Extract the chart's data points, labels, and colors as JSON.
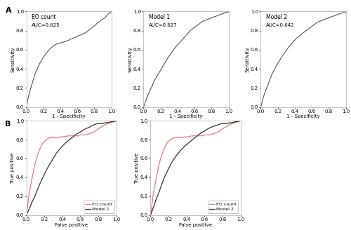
{
  "panel_A_label": "A",
  "panel_B_label": "B",
  "subplot_titles": [
    "EO count",
    "Model 1",
    "Model 2"
  ],
  "auc_values": [
    "AUC=0.625",
    "AUC=0.627",
    "AUC=0.642"
  ],
  "xlabel_A": "1 - Specificity",
  "ylabel_A": "Sensitivity",
  "xlabel_B": "False positive",
  "ylabel_B": "True positive",
  "xticks": [
    0.0,
    0.2,
    0.4,
    0.6,
    0.8,
    1.0
  ],
  "yticks": [
    0.0,
    0.2,
    0.4,
    0.6,
    0.8,
    1.0
  ],
  "line_color_dark": "#555555",
  "line_color_pink": "#E87878",
  "line_color_dark2": "#333333",
  "background_color": "#ffffff",
  "spine_color": "#aaaaaa",
  "font_size": 5.5,
  "label_font_size": 5.0,
  "panel_label_font_size": 8,
  "roc_eo_x": [
    0.0,
    0.01,
    0.02,
    0.04,
    0.06,
    0.08,
    0.1,
    0.13,
    0.16,
    0.2,
    0.24,
    0.28,
    0.32,
    0.36,
    0.4,
    0.44,
    0.47,
    0.5,
    0.52,
    0.55,
    0.58,
    0.6,
    0.63,
    0.65,
    0.68,
    0.7,
    0.73,
    0.76,
    0.8,
    0.84,
    0.88,
    0.92,
    0.95,
    0.97,
    0.99,
    1.0
  ],
  "roc_eo_y": [
    0.0,
    0.04,
    0.09,
    0.16,
    0.22,
    0.28,
    0.34,
    0.4,
    0.46,
    0.52,
    0.57,
    0.61,
    0.64,
    0.66,
    0.67,
    0.68,
    0.69,
    0.7,
    0.71,
    0.72,
    0.73,
    0.74,
    0.75,
    0.76,
    0.77,
    0.78,
    0.8,
    0.82,
    0.85,
    0.88,
    0.91,
    0.93,
    0.96,
    0.98,
    0.99,
    1.0
  ],
  "roc_m1_x": [
    0.0,
    0.01,
    0.02,
    0.04,
    0.07,
    0.1,
    0.13,
    0.17,
    0.21,
    0.25,
    0.29,
    0.33,
    0.37,
    0.41,
    0.45,
    0.49,
    0.52,
    0.55,
    0.58,
    0.61,
    0.64,
    0.67,
    0.7,
    0.73,
    0.76,
    0.79,
    0.82,
    0.85,
    0.88,
    0.91,
    0.94,
    0.97,
    0.99,
    1.0
  ],
  "roc_m1_y": [
    0.0,
    0.02,
    0.05,
    0.1,
    0.16,
    0.22,
    0.28,
    0.34,
    0.4,
    0.46,
    0.52,
    0.57,
    0.62,
    0.66,
    0.7,
    0.74,
    0.77,
    0.8,
    0.82,
    0.84,
    0.86,
    0.88,
    0.9,
    0.91,
    0.92,
    0.93,
    0.94,
    0.95,
    0.96,
    0.97,
    0.98,
    0.99,
    0.99,
    1.0
  ],
  "roc_m2_x": [
    0.0,
    0.01,
    0.02,
    0.04,
    0.07,
    0.1,
    0.13,
    0.17,
    0.21,
    0.25,
    0.29,
    0.33,
    0.37,
    0.41,
    0.45,
    0.49,
    0.52,
    0.55,
    0.58,
    0.61,
    0.64,
    0.67,
    0.7,
    0.73,
    0.76,
    0.79,
    0.82,
    0.85,
    0.88,
    0.91,
    0.94,
    0.97,
    0.99,
    1.0
  ],
  "roc_m2_y": [
    0.0,
    0.03,
    0.07,
    0.13,
    0.2,
    0.27,
    0.34,
    0.41,
    0.47,
    0.53,
    0.58,
    0.63,
    0.67,
    0.71,
    0.74,
    0.77,
    0.79,
    0.81,
    0.83,
    0.85,
    0.87,
    0.89,
    0.9,
    0.91,
    0.92,
    0.93,
    0.94,
    0.95,
    0.96,
    0.97,
    0.98,
    0.99,
    0.99,
    1.0
  ],
  "roc_eo_b_x": [
    0.0,
    0.01,
    0.02,
    0.03,
    0.05,
    0.07,
    0.09,
    0.12,
    0.15,
    0.18,
    0.22,
    0.26,
    0.3,
    0.34,
    0.38,
    0.42,
    0.46,
    0.5,
    0.54,
    0.57,
    0.6,
    0.63,
    0.65,
    0.67,
    0.69,
    0.72,
    0.75,
    0.78,
    0.81,
    0.85,
    0.88,
    0.91,
    0.94,
    0.97,
    1.0
  ],
  "roc_eo_b_y": [
    0.0,
    0.06,
    0.14,
    0.22,
    0.32,
    0.42,
    0.52,
    0.62,
    0.7,
    0.76,
    0.8,
    0.82,
    0.82,
    0.82,
    0.83,
    0.83,
    0.84,
    0.84,
    0.84,
    0.84,
    0.85,
    0.85,
    0.85,
    0.85,
    0.86,
    0.87,
    0.88,
    0.9,
    0.92,
    0.94,
    0.96,
    0.97,
    0.98,
    0.99,
    1.0
  ],
  "roc_m1_b_x": [
    0.0,
    0.01,
    0.02,
    0.04,
    0.06,
    0.09,
    0.12,
    0.15,
    0.19,
    0.23,
    0.28,
    0.33,
    0.38,
    0.43,
    0.48,
    0.52,
    0.56,
    0.6,
    0.63,
    0.67,
    0.7,
    0.73,
    0.76,
    0.79,
    0.82,
    0.85,
    0.88,
    0.91,
    0.94,
    0.97,
    1.0
  ],
  "roc_m1_b_y": [
    0.0,
    0.02,
    0.04,
    0.08,
    0.13,
    0.19,
    0.26,
    0.33,
    0.41,
    0.49,
    0.57,
    0.65,
    0.71,
    0.76,
    0.8,
    0.83,
    0.86,
    0.88,
    0.9,
    0.92,
    0.93,
    0.95,
    0.96,
    0.97,
    0.97,
    0.97,
    0.98,
    0.98,
    0.99,
    0.99,
    1.0
  ],
  "roc_eo_b2_x": [
    0.0,
    0.01,
    0.02,
    0.03,
    0.05,
    0.07,
    0.09,
    0.12,
    0.15,
    0.18,
    0.22,
    0.26,
    0.3,
    0.34,
    0.38,
    0.42,
    0.46,
    0.5,
    0.54,
    0.57,
    0.6,
    0.63,
    0.65,
    0.67,
    0.69,
    0.72,
    0.75,
    0.78,
    0.81,
    0.85,
    0.88,
    0.91,
    0.94,
    0.97,
    1.0
  ],
  "roc_eo_b2_y": [
    0.0,
    0.06,
    0.14,
    0.22,
    0.32,
    0.42,
    0.52,
    0.62,
    0.7,
    0.76,
    0.8,
    0.82,
    0.82,
    0.82,
    0.83,
    0.83,
    0.84,
    0.84,
    0.84,
    0.84,
    0.85,
    0.85,
    0.85,
    0.85,
    0.86,
    0.87,
    0.88,
    0.9,
    0.92,
    0.94,
    0.96,
    0.97,
    0.98,
    0.99,
    1.0
  ],
  "roc_m2_b_x": [
    0.0,
    0.01,
    0.02,
    0.04,
    0.06,
    0.09,
    0.12,
    0.15,
    0.19,
    0.23,
    0.28,
    0.33,
    0.38,
    0.43,
    0.48,
    0.52,
    0.56,
    0.6,
    0.63,
    0.67,
    0.7,
    0.73,
    0.76,
    0.79,
    0.82,
    0.85,
    0.88,
    0.91,
    0.94,
    0.97,
    1.0
  ],
  "roc_m2_b_y": [
    0.0,
    0.02,
    0.05,
    0.1,
    0.16,
    0.23,
    0.31,
    0.39,
    0.47,
    0.55,
    0.62,
    0.68,
    0.73,
    0.77,
    0.81,
    0.84,
    0.87,
    0.89,
    0.91,
    0.93,
    0.94,
    0.95,
    0.96,
    0.97,
    0.97,
    0.97,
    0.98,
    0.98,
    0.99,
    0.99,
    1.0
  ]
}
